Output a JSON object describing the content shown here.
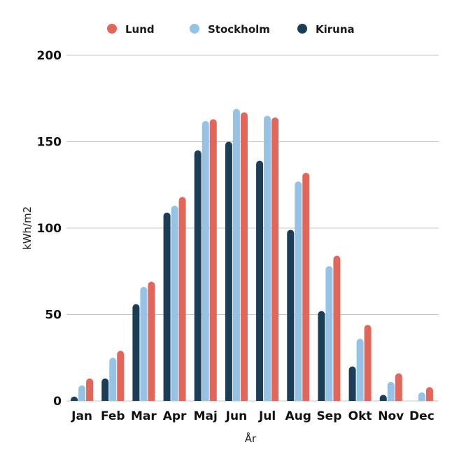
{
  "chart_data": {
    "type": "bar",
    "title": "",
    "xlabel": "År",
    "ylabel": "kWh/m2",
    "ylim": [
      0,
      200
    ],
    "yticks": [
      "0",
      "50",
      "100",
      "150",
      "200"
    ],
    "categories": [
      "Jan",
      "Feb",
      "Mar",
      "Apr",
      "Maj",
      "Jun",
      "Jul",
      "Aug",
      "Sep",
      "Okt",
      "Nov",
      "Dec"
    ],
    "series": [
      {
        "name": "Kiruna",
        "color": "#1b3d56",
        "values": [
          1,
          13,
          56,
          109,
          145,
          150,
          139,
          99,
          52,
          20,
          3,
          0
        ]
      },
      {
        "name": "Stockholm",
        "color": "#95c3e6",
        "values": [
          9,
          25,
          66,
          113,
          162,
          169,
          165,
          127,
          78,
          36,
          11,
          5
        ]
      },
      {
        "name": "Lund",
        "color": "#e2665a",
        "values": [
          13,
          29,
          69,
          118,
          163,
          167,
          164,
          132,
          84,
          44,
          16,
          8
        ]
      }
    ],
    "legend": {
      "position": "top",
      "order": [
        "Lund",
        "Stockholm",
        "Kiruna"
      ]
    },
    "grid": true
  }
}
